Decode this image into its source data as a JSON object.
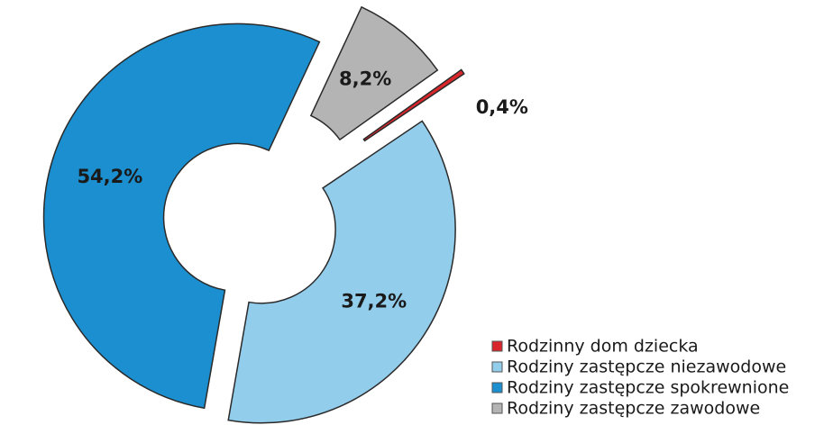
{
  "chart_data": {
    "type": "donut",
    "categories": [
      "Rodzinny dom dziecka",
      "Rodziny zastępcze niezawodowe",
      "Rodziny zastępcze spokrewnione",
      "Rodziny zastępcze zawodowe"
    ],
    "values": [
      0.4,
      37.2,
      54.2,
      8.2
    ],
    "value_labels": [
      "0,4%",
      "37,2%",
      "54,2%",
      "8,2%"
    ],
    "colors": [
      "#d9262b",
      "#93cdec",
      "#1b8fcf",
      "#b4b4b4"
    ]
  }
}
